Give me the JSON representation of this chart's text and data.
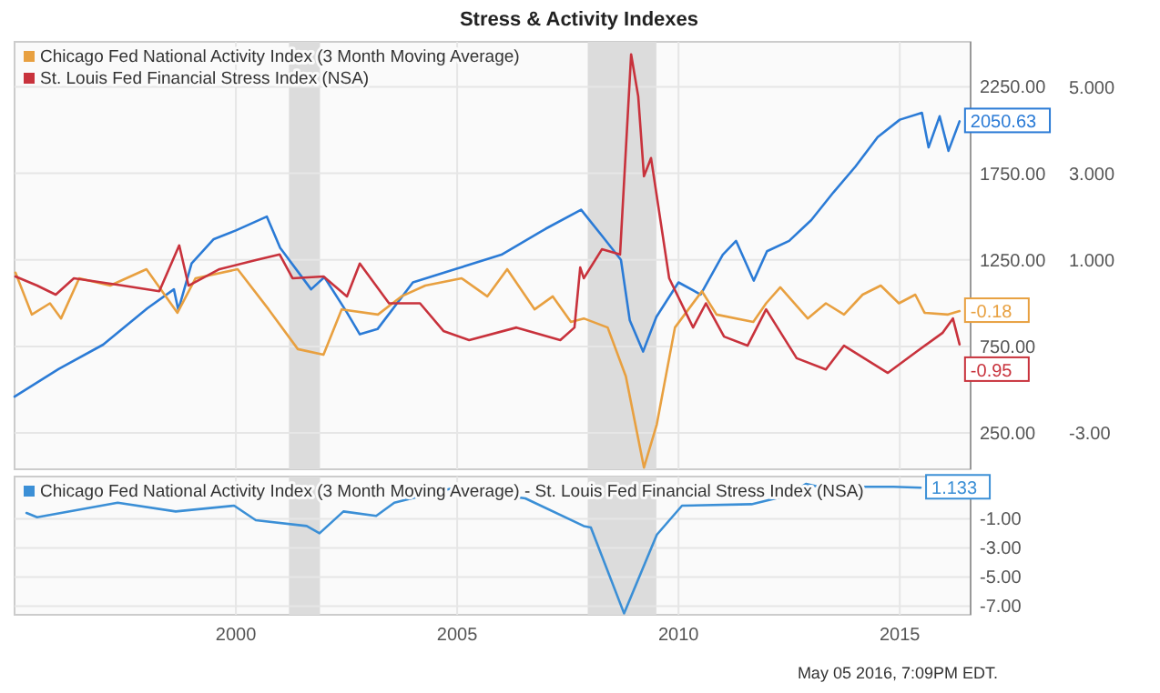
{
  "chart_data": [
    {
      "type": "line",
      "title": "Stress & Activity Indexes",
      "xlim": [
        1995.0,
        2016.6
      ],
      "xticks": [
        2000,
        2005,
        2010,
        2015
      ],
      "ylim": [
        40,
        2510
      ],
      "yticks": [
        {
          "value": 250,
          "label": "250.00"
        },
        {
          "value": 750,
          "label": "750.00"
        },
        {
          "value": 1250,
          "label": "1250.00"
        },
        {
          "value": 1750,
          "label": "1750.00"
        },
        {
          "value": 2250,
          "label": "2250.00"
        }
      ],
      "y2lim": [
        -3.84,
        6.05
      ],
      "y2ticks": [
        {
          "value": -3,
          "label": "-3.00"
        },
        {
          "value": 1,
          "label": "1.000"
        },
        {
          "value": 3,
          "label": "3.000"
        },
        {
          "value": 5,
          "label": "5.000"
        }
      ],
      "tick_labels": "y",
      "grid": true,
      "legend": "top left",
      "bands": [
        {
          "axis": "x",
          "from": 2001.2,
          "to": 2001.9,
          "color": "#dcdcdc"
        },
        {
          "axis": "x",
          "from": 2007.95,
          "to": 2009.5,
          "color": "#dcdcdc"
        }
      ],
      "series": [
        {
          "color": "#2b7bd6",
          "x": [
            1995.0,
            1996,
            1997,
            1998,
            1998.6,
            1998.7,
            1999,
            1999.5,
            2000,
            2000.7,
            2001,
            2001.7,
            2002,
            2002.5,
            2002.8,
            2003.2,
            2004,
            2005,
            2006,
            2007,
            2007.8,
            2008.3,
            2008.7,
            2008.9,
            2009.2,
            2009.5,
            2010,
            2010.5,
            2011,
            2011.3,
            2011.7,
            2012,
            2012.5,
            2013,
            2013.5,
            2014,
            2014.5,
            2015,
            2015.5,
            2015.65,
            2015.9,
            2016.1,
            2016.35
          ],
          "values": [
            460,
            620,
            760,
            970,
            1080,
            960,
            1230,
            1370,
            1420,
            1500,
            1320,
            1080,
            1150,
            950,
            820,
            850,
            1120,
            1200,
            1280,
            1430,
            1540,
            1380,
            1250,
            900,
            720,
            920,
            1120,
            1050,
            1280,
            1360,
            1130,
            1300,
            1360,
            1480,
            1640,
            1790,
            1960,
            2060,
            2100,
            1900,
            2080,
            1880,
            2050.63
          ],
          "value_labels": [
            null,
            null,
            null,
            null,
            null,
            null,
            null,
            null,
            null,
            null,
            null,
            null,
            null,
            null,
            null,
            null,
            null,
            null,
            null,
            null,
            null,
            null,
            null,
            null,
            null,
            null,
            null,
            null,
            null,
            null,
            null,
            null,
            null,
            null,
            null,
            null,
            null,
            null,
            null,
            null,
            null,
            null,
            "2050.63"
          ]
        },
        {
          "name": "Chicago Fed National Activity Index (3 Month Moving Average)",
          "color": "#e8a040",
          "axis": "y2",
          "x": [
            1995.02,
            1995.39,
            1995.8,
            1996.05,
            1996.46,
            1997.16,
            1997.98,
            1998.68,
            1999.09,
            2000.04,
            2000.74,
            2001.4,
            2001.98,
            2002.39,
            2003.21,
            2003.74,
            2004.28,
            2005.1,
            2005.68,
            2006.13,
            2006.75,
            2007.16,
            2007.57,
            2007.86,
            2008.4,
            2008.81,
            2009.22,
            2009.51,
            2009.92,
            2010.53,
            2010.86,
            2011.69,
            2011.98,
            2012.3,
            2012.92,
            2013.33,
            2013.74,
            2014.16,
            2014.57,
            2014.98,
            2015.35,
            2015.56,
            2016.09,
            2016.35
          ],
          "values": [
            0.71,
            -0.26,
            0.0,
            -0.35,
            0.58,
            0.41,
            0.79,
            -0.22,
            0.58,
            0.79,
            -0.14,
            -1.06,
            -1.19,
            -0.14,
            -0.26,
            0.16,
            0.41,
            0.58,
            0.16,
            0.79,
            -0.14,
            0.16,
            -0.43,
            -0.35,
            -0.56,
            -1.69,
            -3.8,
            -2.8,
            -0.56,
            0.28,
            -0.26,
            -0.43,
            0.0,
            0.37,
            -0.35,
            0.0,
            -0.26,
            0.2,
            0.41,
            0.0,
            0.2,
            -0.22,
            -0.26,
            -0.18
          ],
          "value_labels": [
            null,
            null,
            null,
            null,
            null,
            null,
            null,
            null,
            null,
            null,
            null,
            null,
            null,
            null,
            null,
            null,
            null,
            null,
            null,
            null,
            null,
            null,
            null,
            null,
            null,
            null,
            null,
            null,
            null,
            null,
            null,
            null,
            null,
            null,
            null,
            null,
            null,
            null,
            null,
            null,
            null,
            null,
            null,
            "-0.18"
          ]
        },
        {
          "name": "St. Louis Fed Financial Stress Index (NSA)",
          "color": "#c8323c",
          "axis": "y2",
          "x": [
            1995.02,
            1995.51,
            1995.93,
            1996.34,
            1997.45,
            1998.27,
            1998.72,
            1998.93,
            1999.63,
            2000.45,
            2000.99,
            2001.28,
            2001.98,
            2002.51,
            2002.8,
            2003.46,
            2004.16,
            2004.69,
            2005.27,
            2006.34,
            2007.33,
            2007.65,
            2007.78,
            2007.86,
            2008.27,
            2008.68,
            2008.93,
            2009.09,
            2009.22,
            2009.38,
            2009.79,
            2010.33,
            2010.62,
            2011.03,
            2011.56,
            2011.98,
            2012.67,
            2013.33,
            2013.74,
            2014.73,
            2015.39,
            2015.97,
            2016.2,
            2016.35
          ],
          "values": [
            0.62,
            0.41,
            0.2,
            0.58,
            0.41,
            0.28,
            1.34,
            0.41,
            0.79,
            1.0,
            1.13,
            0.58,
            0.62,
            0.16,
            0.92,
            0.0,
            0.0,
            -0.64,
            -0.85,
            -0.56,
            -0.85,
            -0.56,
            0.83,
            0.58,
            1.25,
            1.13,
            5.76,
            4.79,
            2.94,
            3.36,
            0.58,
            -0.56,
            0.0,
            -0.77,
            -0.98,
            -0.14,
            -1.27,
            -1.53,
            -0.98,
            -1.61,
            -1.11,
            -0.68,
            -0.35,
            -0.95
          ],
          "value_labels": [
            null,
            null,
            null,
            null,
            null,
            null,
            null,
            null,
            null,
            null,
            null,
            null,
            null,
            null,
            null,
            null,
            null,
            null,
            null,
            null,
            null,
            null,
            null,
            null,
            null,
            null,
            null,
            null,
            null,
            null,
            null,
            null,
            null,
            null,
            null,
            null,
            null,
            null,
            null,
            null,
            null,
            null,
            null,
            "-0.95"
          ]
        }
      ]
    },
    {
      "type": "line",
      "xlim": [
        1995.0,
        2016.6
      ],
      "xticks": [
        2000,
        2005,
        2010,
        2015
      ],
      "ylim": [
        -7.6,
        1.9
      ],
      "yticks": [
        {
          "value": -7,
          "label": "-7.00"
        },
        {
          "value": -5,
          "label": "-5.00"
        },
        {
          "value": -3,
          "label": "-3.00"
        },
        {
          "value": -1,
          "label": "-1.00"
        }
      ],
      "grid": true,
      "legend": "top left",
      "bands": [
        {
          "axis": "x",
          "from": 2001.2,
          "to": 2001.9,
          "color": "#dcdcdc"
        },
        {
          "axis": "x",
          "from": 2007.95,
          "to": 2009.5,
          "color": "#dcdcdc"
        }
      ],
      "annotations": [
        "May 05 2016, 7:09PM EDT."
      ],
      "series": [
        {
          "name": "Chicago Fed National Activity Index (3 Month Moving Average) - St. Louis Fed Financial Stress Index (NSA)",
          "color": "#3b8fd6",
          "x": [
            1995.27,
            1995.51,
            1997.33,
            1998.64,
            1999.96,
            2000.45,
            2001.6,
            2001.89,
            2002.43,
            2003.17,
            2003.58,
            2004.9,
            2006.54,
            2007.86,
            2008.02,
            2008.77,
            2009.51,
            2010.08,
            2011.65,
            2012.47,
            2012.88,
            2013.46,
            2014.12,
            2014.86,
            2015.47
          ],
          "values": [
            -0.6,
            -0.9,
            0.1,
            -0.5,
            -0.1,
            -1.1,
            -1.5,
            -2.0,
            -0.5,
            -0.8,
            0.1,
            1.1,
            0.4,
            -1.5,
            -1.6,
            -7.5,
            -2.1,
            -0.1,
            0.0,
            0.6,
            1.4,
            1.0,
            1.2,
            1.2,
            1.133
          ],
          "value_labels": [
            null,
            null,
            null,
            null,
            null,
            null,
            null,
            null,
            null,
            null,
            null,
            null,
            null,
            null,
            null,
            null,
            null,
            null,
            null,
            null,
            null,
            null,
            null,
            null,
            "1.133"
          ]
        }
      ]
    }
  ]
}
